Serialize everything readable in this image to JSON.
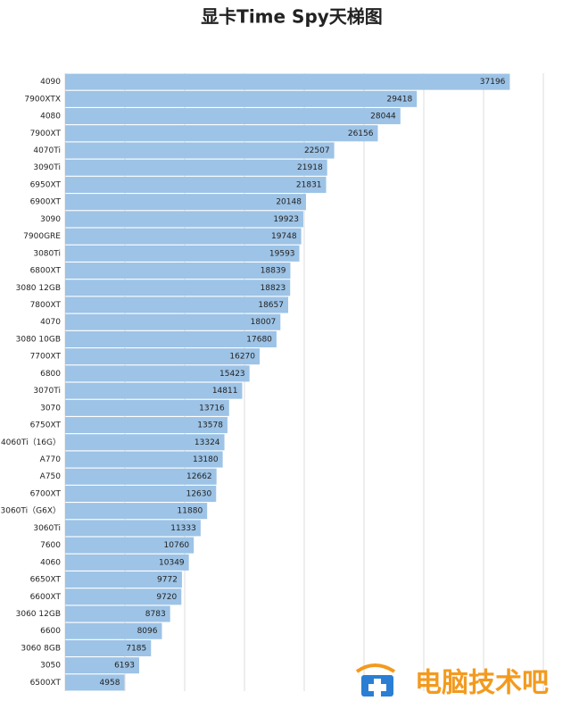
{
  "chart_data": {
    "type": "hbar",
    "title": "显卡Time Spy天梯图",
    "categories": [
      "4090",
      "7900XTX",
      "4080",
      "7900XT",
      "4070Ti",
      "3090Ti",
      "6950XT",
      "6900XT",
      "3090",
      "7900GRE",
      "3080Ti",
      "6800XT",
      "3080 12GB",
      "7800XT",
      "4070",
      "3080 10GB",
      "7700XT",
      "6800",
      "3070Ti",
      "3070",
      "6750XT",
      "4060Ti（16G）",
      "A770",
      "A750",
      "6700XT",
      "3060Ti（G6X）",
      "3060Ti",
      "7600",
      "4060",
      "6650XT",
      "6600XT",
      "3060 12GB",
      "6600",
      "3060 8GB",
      "3050",
      "6500XT"
    ],
    "values": [
      37196,
      29418,
      28044,
      26156,
      22507,
      21918,
      21831,
      20148,
      19923,
      19748,
      19593,
      18839,
      18823,
      18657,
      18007,
      17680,
      16270,
      15423,
      14811,
      13716,
      13578,
      13324,
      13180,
      12662,
      12630,
      11880,
      11333,
      10760,
      10349,
      9772,
      9720,
      8783,
      8096,
      7185,
      6193,
      4958
    ],
    "color": "#9dc3e6",
    "xlim": [
      0,
      40000
    ],
    "xticks": [
      0,
      5000,
      10000,
      15000,
      20000,
      25000,
      30000,
      35000,
      40000
    ],
    "grid": true,
    "watermark": "电脑技术吧"
  }
}
